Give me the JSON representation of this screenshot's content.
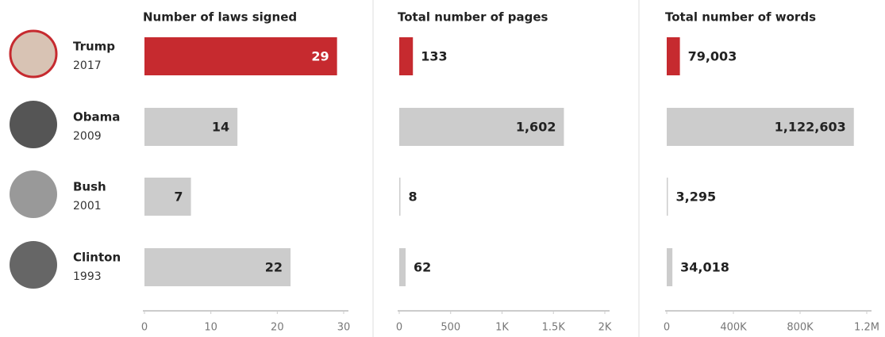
{
  "rows": [
    {
      "name": "Trump",
      "year": "2017"
    },
    {
      "name": "Obama",
      "year": "2009"
    },
    {
      "name": "Bush",
      "year": "2001"
    },
    {
      "name": "Clinton",
      "year": "1993"
    }
  ],
  "chart_data": [
    {
      "type": "bar",
      "orientation": "horizontal",
      "title": "Number of laws signed",
      "values": [
        29,
        14,
        7,
        22
      ],
      "colors": [
        "#c62a2f",
        "#cccccc",
        "#cccccc",
        "#cccccc"
      ],
      "xlim": [
        0,
        30
      ],
      "xticks": [
        0,
        10,
        20,
        30
      ]
    },
    {
      "type": "bar",
      "orientation": "horizontal",
      "title": "Total number of pages",
      "values": [
        133,
        1602,
        8,
        62
      ],
      "value_labels": [
        "133",
        "1,602",
        "8",
        "62"
      ],
      "colors": [
        "#c62a2f",
        "#cccccc",
        "#cccccc",
        "#cccccc"
      ],
      "xlim": [
        0,
        2000
      ],
      "xticks": [
        0,
        500,
        {
          "value": 1000,
          "label": "1K"
        },
        {
          "value": 1500,
          "label": "1.5K"
        },
        {
          "value": 2000,
          "label": "2K"
        }
      ]
    },
    {
      "type": "bar",
      "orientation": "horizontal",
      "title": "Total number of words",
      "values": [
        79003,
        1122603,
        3295,
        34018
      ],
      "value_labels": [
        "79,003",
        "1,122,603",
        "3,295",
        "34,018"
      ],
      "colors": [
        "#c62a2f",
        "#cccccc",
        "#cccccc",
        "#cccccc"
      ],
      "xlim": [
        0,
        1200000
      ],
      "xticks": [
        0,
        {
          "value": 400000,
          "label": "400K"
        },
        {
          "value": 800000,
          "label": "800K"
        },
        {
          "value": 1200000,
          "label": "1.2M"
        }
      ]
    }
  ]
}
